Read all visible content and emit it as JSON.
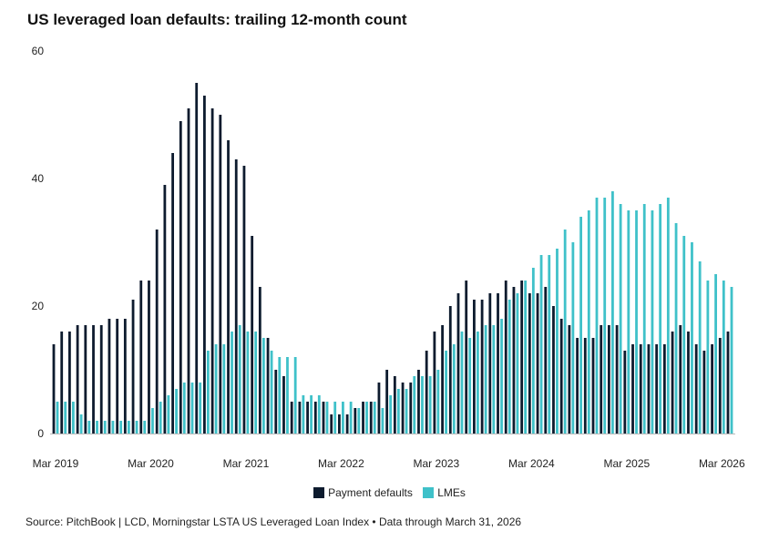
{
  "title": "US leveraged loan defaults: trailing 12-month count",
  "source": "Source: PitchBook | LCD, Morningstar LSTA US Leveraged Loan Index • Data through March 31, 2026",
  "colors": {
    "payment": "#0d1b2e",
    "lme": "#3fc1c9"
  },
  "chart_data": {
    "type": "bar",
    "title": "US leveraged loan defaults: trailing 12-month count",
    "xlabel": "",
    "ylabel": "",
    "ylim": [
      0,
      60
    ],
    "yticks": [
      0,
      20,
      40,
      60
    ],
    "x_tick_labels": [
      "Mar 2019",
      "Mar 2020",
      "Mar 2021",
      "Mar 2022",
      "Mar 2023",
      "Mar 2024",
      "Mar 2025",
      "Mar 2026"
    ],
    "categories_start": "Mar 2019",
    "categories_end": "Mar 2026",
    "frequency": "monthly",
    "legend_position": "bottom-center",
    "series": [
      {
        "name": "Payment defaults",
        "values": [
          14,
          16,
          16,
          17,
          17,
          17,
          17,
          18,
          18,
          18,
          21,
          24,
          24,
          32,
          39,
          44,
          49,
          51,
          55,
          53,
          51,
          50,
          46,
          43,
          42,
          31,
          23,
          15,
          10,
          9,
          5,
          5,
          5,
          5,
          5,
          3,
          3,
          3,
          4,
          5,
          5,
          8,
          10,
          9,
          8,
          8,
          10,
          13,
          16,
          17,
          20,
          22,
          24,
          21,
          21,
          22,
          22,
          24,
          23,
          24,
          22,
          22,
          23,
          20,
          18,
          17,
          15,
          15,
          15,
          17,
          17,
          17,
          13,
          14,
          14,
          14,
          14,
          14,
          16,
          17,
          16,
          14,
          13,
          14,
          15,
          16
        ]
      },
      {
        "name": "LMEs",
        "values": [
          5,
          5,
          5,
          3,
          2,
          2,
          2,
          2,
          2,
          2,
          2,
          2,
          4,
          5,
          6,
          7,
          8,
          8,
          8,
          13,
          14,
          14,
          16,
          17,
          16,
          16,
          15,
          13,
          12,
          12,
          12,
          6,
          6,
          6,
          5,
          5,
          5,
          5,
          4,
          5,
          5,
          4,
          6,
          7,
          7,
          9,
          9,
          9,
          10,
          13,
          14,
          16,
          15,
          16,
          17,
          17,
          18,
          21,
          22,
          24,
          26,
          28,
          28,
          29,
          32,
          30,
          34,
          35,
          37,
          37,
          38,
          36,
          35,
          35,
          36,
          35,
          36,
          37,
          33,
          31,
          30,
          27,
          24,
          25,
          24,
          23
        ]
      }
    ]
  }
}
